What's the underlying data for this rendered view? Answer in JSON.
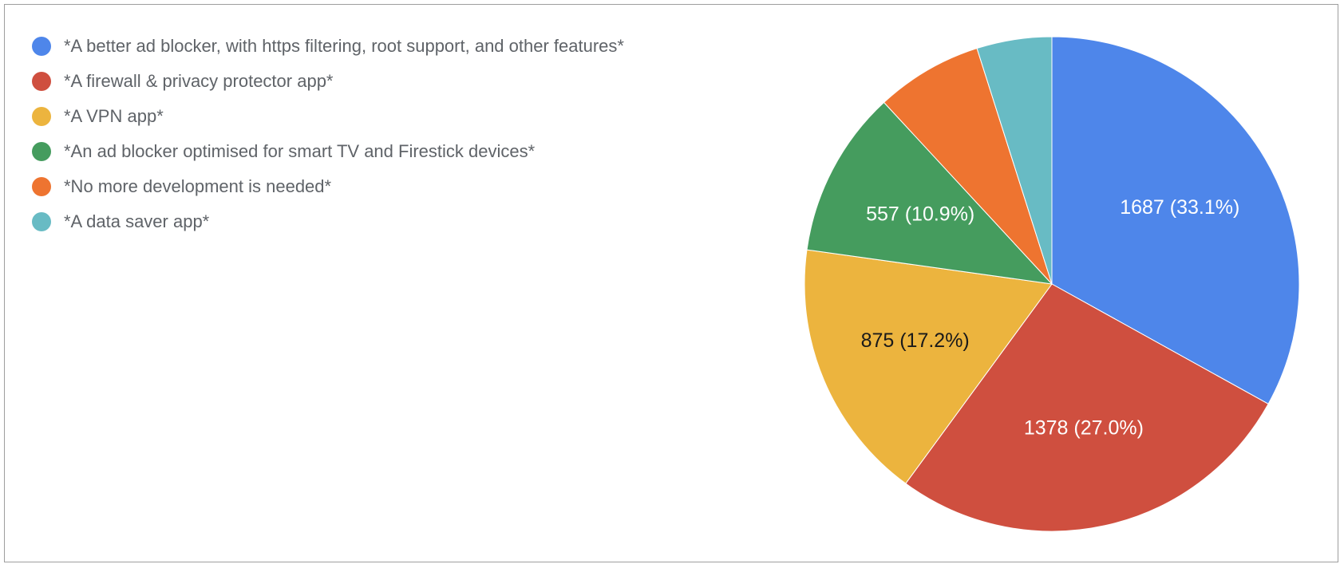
{
  "chart_data": {
    "type": "pie",
    "title": "",
    "legend_position": "left",
    "start_angle": "top",
    "direction": "clockwise",
    "slices": [
      {
        "name": "*A better ad blocker, with https filtering, root support, and other features*",
        "value": 1687,
        "label": "1687 (33.1%)",
        "color": "#4e86ea",
        "label_color": "#ffffff"
      },
      {
        "name": "*A firewall & privacy protector app*",
        "value": 1378,
        "label": "1378 (27.0%)",
        "color": "#cf4f3f",
        "label_color": "#ffffff"
      },
      {
        "name": "*A VPN app*",
        "value": 875,
        "label": "875 (17.2%)",
        "color": "#ecb43e",
        "label_color": "#1a1a1a"
      },
      {
        "name": "*An ad blocker optimised for smart TV and Firestick devices*",
        "value": 557,
        "label": "557 (10.9%)",
        "color": "#459c5e",
        "label_color": "#ffffff"
      },
      {
        "name": "*No more development is needed*",
        "value": 356,
        "label": "",
        "color": "#ee7430",
        "label_color": "#ffffff"
      },
      {
        "name": "*A data saver app*",
        "value": 250,
        "label": "",
        "color": "#68bbc4",
        "label_color": "#ffffff"
      }
    ]
  }
}
